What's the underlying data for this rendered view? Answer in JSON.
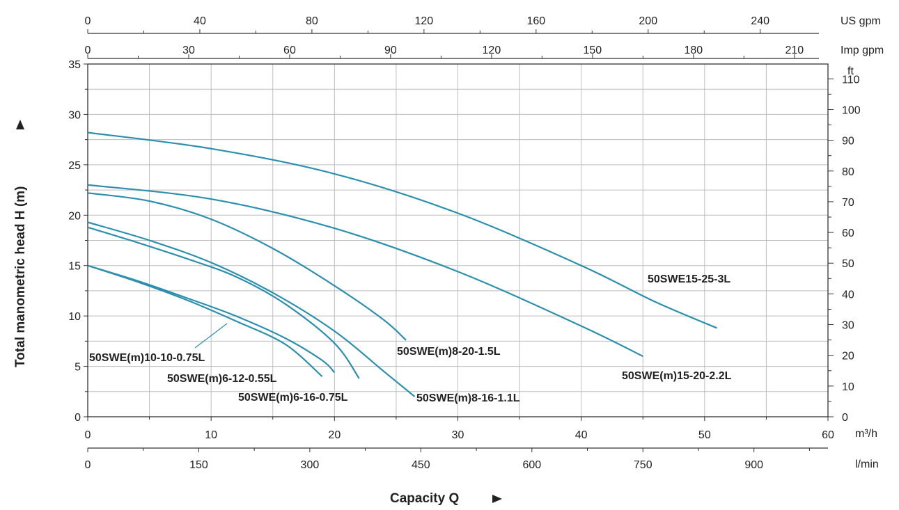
{
  "chart_data": {
    "type": "line",
    "xlabel": "Capacity Q",
    "ylabel": "Total manometric head H (m)",
    "xlim": [
      0,
      60
    ],
    "ylim": [
      0,
      35
    ],
    "grid": true,
    "colors": {
      "series": "#2b8fae",
      "grid": "#bdbdbd",
      "axis": "#333333"
    },
    "x_ticks": [
      "0",
      "10",
      "20",
      "30",
      "40",
      "50",
      "60"
    ],
    "y_ticks": [
      "0",
      "5",
      "10",
      "15",
      "20",
      "25",
      "30",
      "35"
    ],
    "axis_units": {
      "x": "m³/h",
      "y_right": "ft",
      "lmin": "l/min",
      "usgpm": "US gpm",
      "impgpm": "Imp gpm"
    },
    "secondary_axes": {
      "lmin_ticks": [
        "0",
        "150",
        "300",
        "450",
        "600",
        "750",
        "900"
      ],
      "usgpm_ticks": [
        "0",
        "40",
        "80",
        "120",
        "160",
        "200",
        "240"
      ],
      "impgpm_ticks": [
        "0",
        "30",
        "60",
        "90",
        "120",
        "150",
        "180",
        "210"
      ],
      "ft_ticks": [
        "0",
        "10",
        "20",
        "30",
        "40",
        "50",
        "60",
        "70",
        "80",
        "90",
        "100",
        "110"
      ]
    },
    "series": [
      {
        "name": "50SWE(m)10-10-0.75L",
        "points": [
          [
            0,
            15
          ],
          [
            4,
            13.4
          ],
          [
            8,
            11.6
          ],
          [
            12,
            9.5
          ],
          [
            16,
            7.2
          ],
          [
            19,
            4
          ]
        ]
      },
      {
        "name": "50SWE(m)6-12-0.55L",
        "points": [
          [
            0,
            15
          ],
          [
            4,
            13.5
          ],
          [
            8,
            11.8
          ],
          [
            12,
            10
          ],
          [
            16,
            7.8
          ],
          [
            19,
            5.6
          ],
          [
            20,
            4.4
          ]
        ]
      },
      {
        "name": "50SWE(m)6-16-0.75L",
        "points": [
          [
            0,
            18.8
          ],
          [
            4,
            17.3
          ],
          [
            8,
            15.7
          ],
          [
            12,
            13.9
          ],
          [
            16,
            11.2
          ],
          [
            20,
            7.3
          ],
          [
            22,
            3.8
          ]
        ]
      },
      {
        "name": "50SWE(m)8-16-1.1L",
        "points": [
          [
            0,
            19.3
          ],
          [
            5,
            17.5
          ],
          [
            10,
            15.3
          ],
          [
            15,
            12.3
          ],
          [
            20,
            8.5
          ],
          [
            24,
            4.5
          ],
          [
            26.5,
            2
          ]
        ]
      },
      {
        "name": "50SWE(m)8-20-1.5L",
        "points": [
          [
            0,
            22.2
          ],
          [
            5,
            21.4
          ],
          [
            10,
            19.6
          ],
          [
            15,
            16.7
          ],
          [
            20,
            13
          ],
          [
            24,
            9.6
          ],
          [
            25.8,
            7.6
          ]
        ]
      },
      {
        "name": "50SWE(m)15-20-2.2L",
        "points": [
          [
            0,
            23
          ],
          [
            10,
            21.6
          ],
          [
            20,
            18.7
          ],
          [
            30,
            14.4
          ],
          [
            40,
            9
          ],
          [
            45,
            6
          ]
        ]
      },
      {
        "name": "50SWE15-25-3L",
        "points": [
          [
            0,
            28.2
          ],
          [
            10,
            26.6
          ],
          [
            20,
            24.1
          ],
          [
            30,
            20.2
          ],
          [
            40,
            15
          ],
          [
            46,
            11.4
          ],
          [
            51,
            8.8
          ]
        ]
      }
    ],
    "annotations": [
      "50SWE(m)10-10-0.75L",
      "50SWE(m)6-12-0.55L",
      "50SWE(m)6-16-0.75L",
      "50SWE(m)8-16-1.1L",
      "50SWE(m)8-20-1.5L",
      "50SWE(m)15-20-2.2L",
      "50SWE15-25-3L"
    ]
  }
}
